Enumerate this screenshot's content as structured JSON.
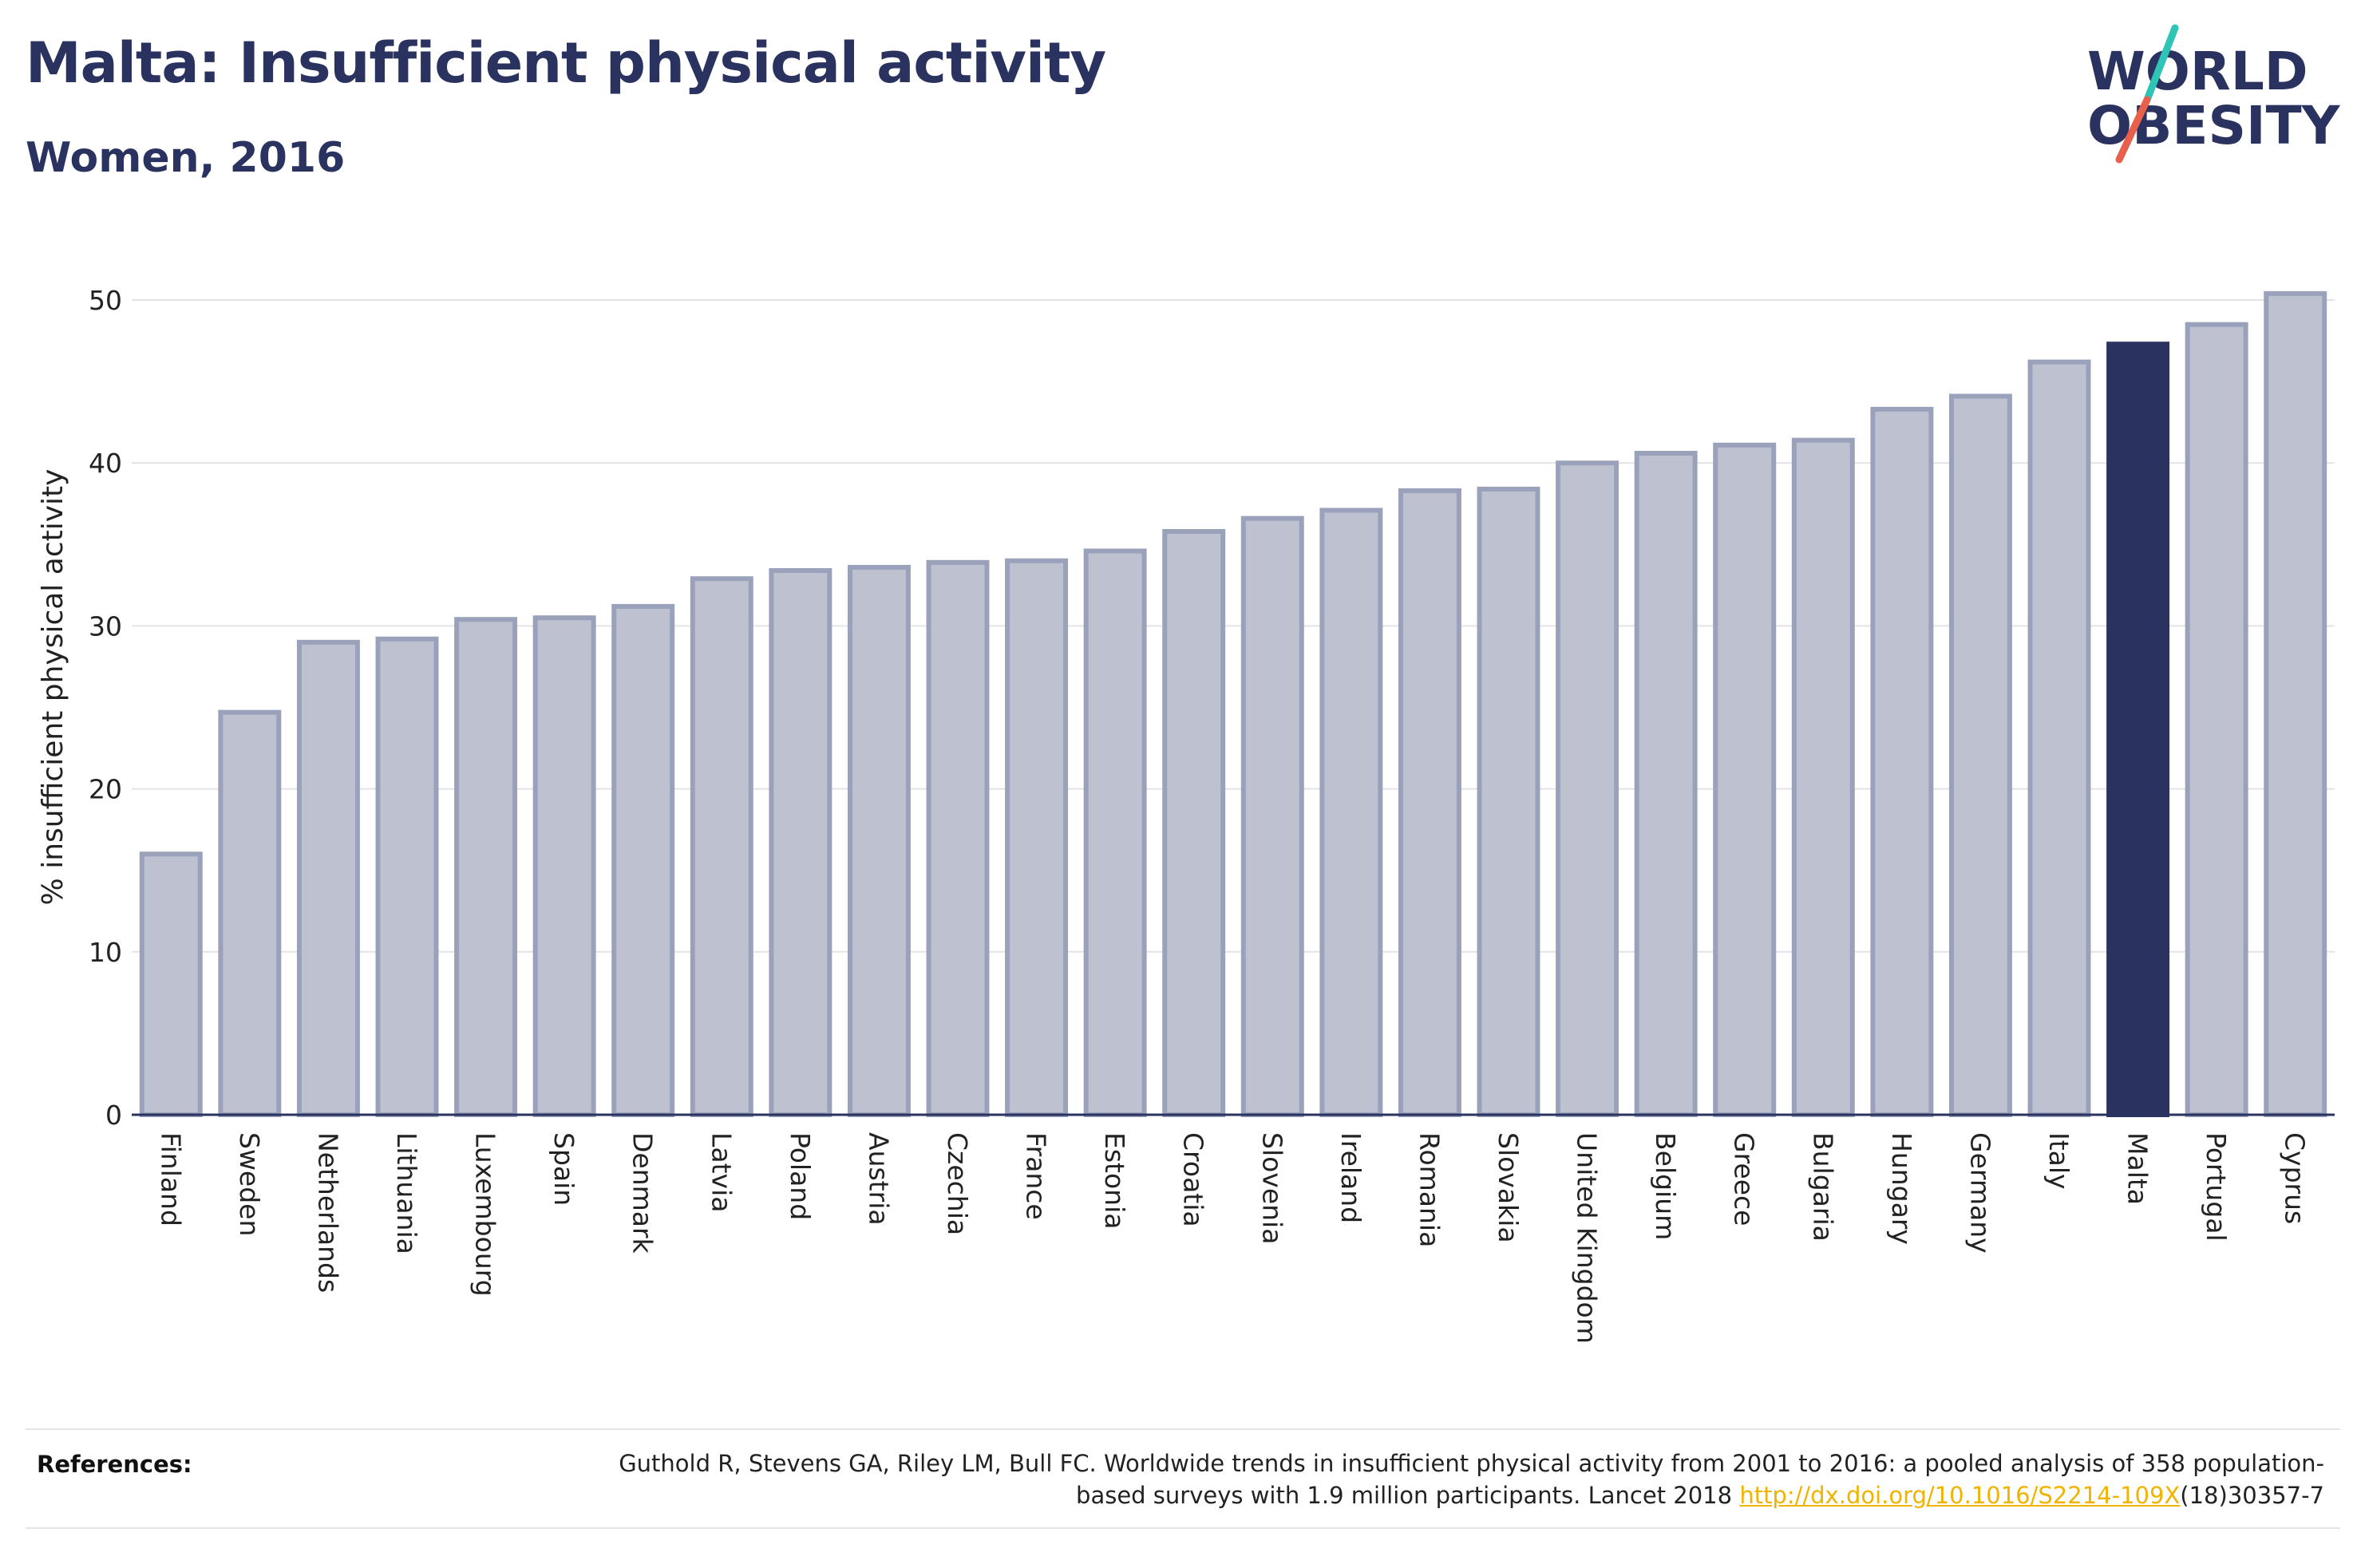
{
  "header": {
    "title": "Malta: Insufficient physical activity",
    "subtitle": "Women, 2016"
  },
  "logo": {
    "line1": "WORLD",
    "line2": "OBESITY",
    "accent_teal": "#2ec4b6",
    "accent_coral": "#e8604c"
  },
  "chart_data": {
    "type": "bar",
    "ylabel": "% insufficient physical activity",
    "ylim": [
      0,
      52.5
    ],
    "yticks": [
      0,
      10,
      20,
      30,
      40,
      50
    ],
    "grid": true,
    "highlight": "Malta",
    "colors": {
      "bar": "#bec2d0",
      "bar_edge": "#9aa1ba",
      "highlight": "#2a3360",
      "grid": "#e3e3e8",
      "axis": "#2a3360"
    },
    "categories": [
      "Finland",
      "Sweden",
      "Netherlands",
      "Lithuania",
      "Luxembourg",
      "Spain",
      "Denmark",
      "Latvia",
      "Poland",
      "Austria",
      "Czechia",
      "France",
      "Estonia",
      "Croatia",
      "Slovenia",
      "Ireland",
      "Romania",
      "Slovakia",
      "United Kingdom",
      "Belgium",
      "Greece",
      "Bulgaria",
      "Hungary",
      "Germany",
      "Italy",
      "Malta",
      "Portugal",
      "Cyprus"
    ],
    "values": [
      16.0,
      24.7,
      29.0,
      29.2,
      30.4,
      30.5,
      31.2,
      32.9,
      33.4,
      33.6,
      33.9,
      34.0,
      34.6,
      35.8,
      36.6,
      37.1,
      38.3,
      38.4,
      40.0,
      40.6,
      41.1,
      41.4,
      43.3,
      44.1,
      46.2,
      47.3,
      48.5,
      50.4
    ]
  },
  "references": {
    "label": "References:",
    "text_before": "Guthold R, Stevens GA, Riley LM, Bull FC. Worldwide trends in insufficient physical activity from 2001 to 2016: a pooled analysis of 358 population-based surveys with 1.9 million participants. Lancet 2018 ",
    "link": "http://dx.doi.org/10.1016/S2214-109X",
    "text_after": "(18)30357-7"
  }
}
